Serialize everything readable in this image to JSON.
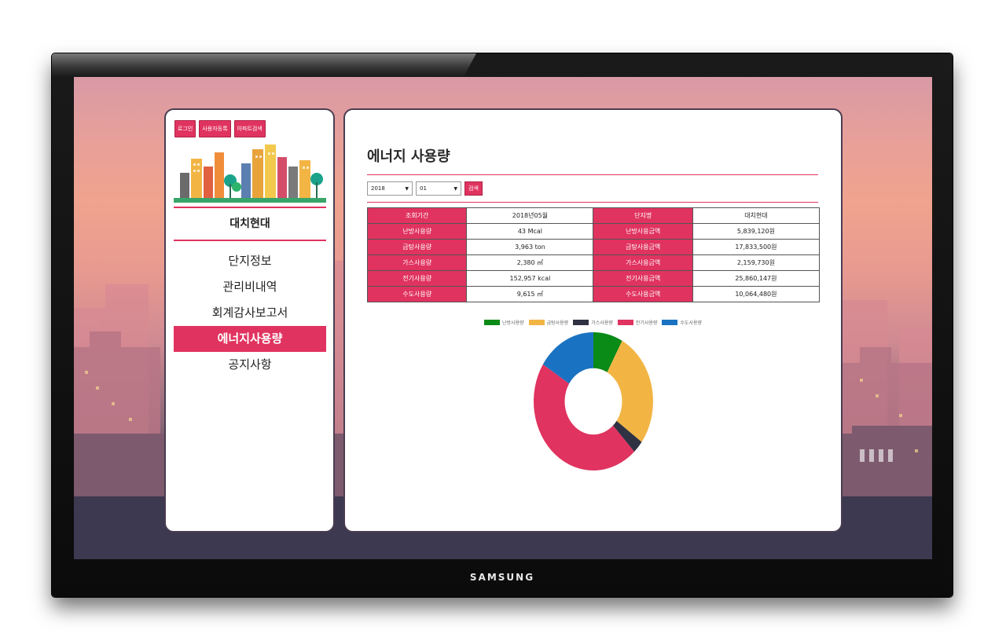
{
  "device": {
    "brand": "SAMSUNG"
  },
  "top_buttons": [
    "로그인",
    "사용자등록",
    "아파트검색"
  ],
  "complex_name": "대치현대",
  "nav": [
    {
      "label": "단지정보",
      "active": false
    },
    {
      "label": "관리비내역",
      "active": false
    },
    {
      "label": "회계감사보고서",
      "active": false
    },
    {
      "label": "에너지사용량",
      "active": true
    },
    {
      "label": "공지사항",
      "active": false
    }
  ],
  "page": {
    "title": "에너지 사용량",
    "filters": {
      "year": "2018",
      "month": "01",
      "search_label": "검색"
    }
  },
  "table": [
    [
      "조회기간",
      "2018년05월",
      "단지명",
      "대치현대"
    ],
    [
      "난방사용량",
      "43 Mcal",
      "난방사용금액",
      "5,839,120원"
    ],
    [
      "급탕사용량",
      "3,963 ton",
      "급탕사용금액",
      "17,833,500원"
    ],
    [
      "가스사용량",
      "2,380 ㎥",
      "가스사용금액",
      "2,159,730원"
    ],
    [
      "전기사용량",
      "152,957 kcal",
      "전기사용금액",
      "25,860,147원"
    ],
    [
      "수도사용량",
      "9,615 ㎥",
      "수도사용금액",
      "10,064,480원"
    ]
  ],
  "colors": {
    "accent": "#e0335f",
    "heating": "#0a8a17",
    "hot_water": "#f2b544",
    "gas": "#2e3242",
    "electric": "#e0335f",
    "water": "#1a73c2"
  },
  "chart_data": {
    "type": "pie",
    "donut": true,
    "title": "",
    "legend_position": "top",
    "series": [
      {
        "name": "난방사용량",
        "value": 8
      },
      {
        "name": "급탕사용량",
        "value": 27
      },
      {
        "name": "가스사용량",
        "value": 3
      },
      {
        "name": "전기사용량",
        "value": 46
      },
      {
        "name": "수도사용량",
        "value": 16
      }
    ]
  }
}
